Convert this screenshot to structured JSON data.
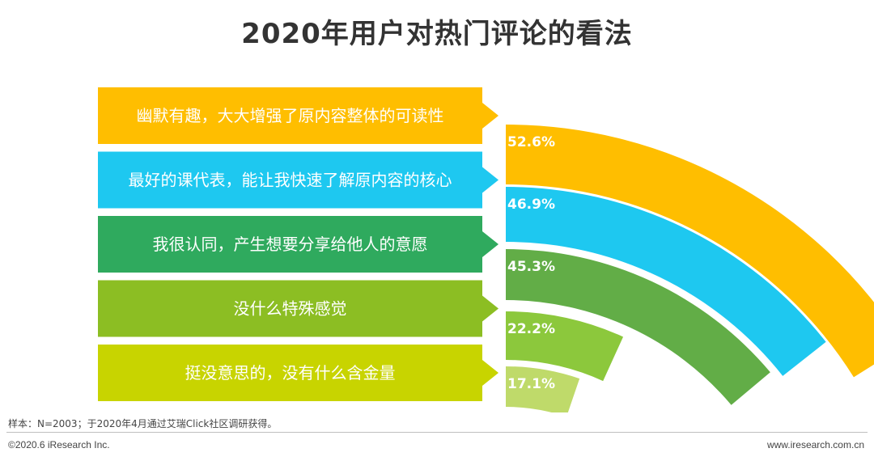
{
  "chart_data": {
    "type": "bar",
    "title": "2020年用户对热门评论的看法",
    "categories": [
      "幽默有趣，大大增强了原内容整体的可读性",
      "最好的课代表，能让我快速了解原内容的核心",
      "我很认同，产生想要分享给他人的意愿",
      "没什么特殊感觉",
      "挺没意思的，没有什么含金量"
    ],
    "values": [
      52.6,
      46.9,
      45.3,
      22.2,
      17.1
    ],
    "value_labels": [
      "52.6%",
      "46.9%",
      "45.3%",
      "22.2%",
      "17.1%"
    ],
    "colors": [
      "#FFBE00",
      "#1EC8F0",
      "#2FAA5E",
      "#8CBE23",
      "#C8D400"
    ],
    "arc_colors": [
      "#FFBE00",
      "#1EC8F0",
      "#62AD47",
      "#8CC83C",
      "#BFDA6A"
    ]
  },
  "footer": {
    "note": "样本：N=2003；于2020年4月通过艾瑞Click社区调研获得。",
    "copyright": "©2020.6 iResearch Inc.",
    "website": "www.iresearch.com.cn"
  }
}
